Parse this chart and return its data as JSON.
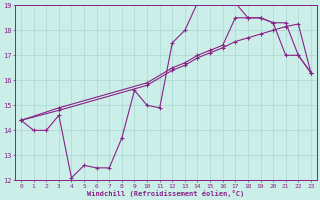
{
  "title": "",
  "xlabel": "Windchill (Refroidissement éolien,°C)",
  "ylabel": "",
  "xlim": [
    -0.5,
    23.5
  ],
  "ylim": [
    12,
    19
  ],
  "xticks": [
    0,
    1,
    2,
    3,
    4,
    5,
    6,
    7,
    8,
    9,
    10,
    11,
    12,
    13,
    14,
    15,
    16,
    17,
    18,
    19,
    20,
    21,
    22,
    23
  ],
  "yticks": [
    12,
    13,
    14,
    15,
    16,
    17,
    18,
    19
  ],
  "background_color": "#cceee8",
  "grid_color": "#aad8d2",
  "line_color": "#882288",
  "line1_x": [
    0,
    1,
    2,
    3,
    4,
    5,
    6,
    7,
    8,
    9,
    10,
    11,
    12,
    13,
    14,
    15,
    16,
    17,
    18,
    19,
    20,
    21,
    22,
    23
  ],
  "line1_y": [
    14.4,
    14.0,
    14.0,
    14.6,
    12.1,
    12.6,
    12.5,
    12.5,
    13.7,
    15.6,
    15.0,
    14.9,
    17.5,
    18.0,
    19.1,
    19.1,
    19.1,
    19.1,
    18.5,
    18.5,
    18.3,
    18.3,
    17.0,
    16.3
  ],
  "line2_x": [
    0,
    3,
    10,
    12,
    13,
    14,
    15,
    16,
    17,
    18,
    19,
    20,
    21,
    22,
    23
  ],
  "line2_y": [
    14.4,
    14.8,
    15.8,
    16.4,
    16.6,
    16.9,
    17.1,
    17.3,
    17.55,
    17.7,
    17.85,
    18.0,
    18.15,
    18.25,
    16.3
  ],
  "line3_x": [
    0,
    3,
    10,
    12,
    13,
    14,
    15,
    16,
    17,
    18,
    19,
    20,
    21,
    22,
    23
  ],
  "line3_y": [
    14.4,
    14.9,
    15.9,
    16.5,
    16.7,
    17.0,
    17.2,
    17.4,
    18.5,
    18.5,
    18.5,
    18.3,
    17.0,
    17.0,
    16.3
  ]
}
